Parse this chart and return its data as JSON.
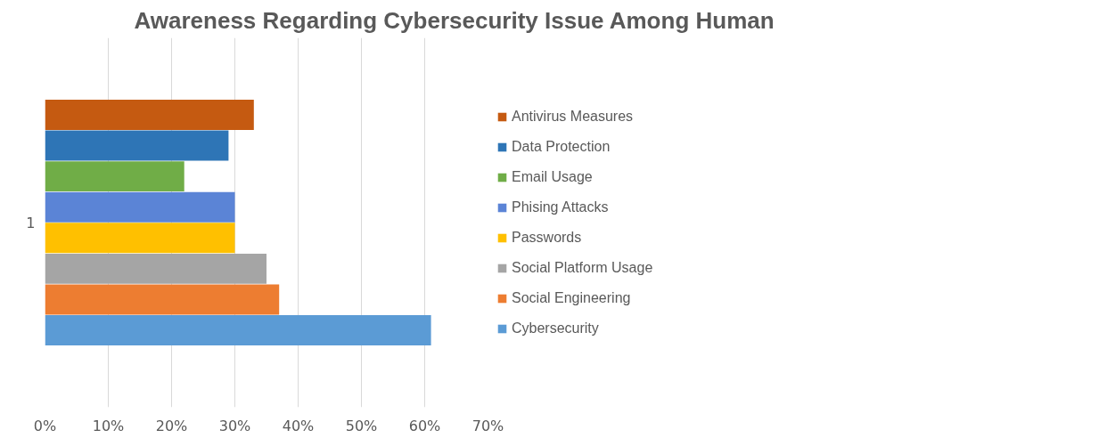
{
  "chart_data": {
    "type": "bar",
    "orientation": "horizontal",
    "title": "Awareness Regarding Cybersecurity Issue Among Human",
    "categories": [
      "1"
    ],
    "series": [
      {
        "name": "Cybersecurity",
        "color": "#5b9bd5",
        "values": [
          61
        ]
      },
      {
        "name": "Social Engineering",
        "color": "#ed7d31",
        "values": [
          37
        ]
      },
      {
        "name": "Social Platform Usage",
        "color": "#a5a5a5",
        "values": [
          35
        ]
      },
      {
        "name": "Passwords",
        "color": "#ffc000",
        "values": [
          30
        ]
      },
      {
        "name": "Phising Attacks",
        "color": "#5b84d6",
        "values": [
          30
        ]
      },
      {
        "name": "Email Usage",
        "color": "#70ad47",
        "values": [
          22
        ]
      },
      {
        "name": "Data Protection",
        "color": "#2e75b6",
        "values": [
          29
        ]
      },
      {
        "name": "Antivirus Measures",
        "color": "#c55a11",
        "values": [
          33
        ]
      }
    ],
    "xlim": [
      0,
      70
    ],
    "xticks": [
      {
        "value": 0,
        "label": "0%"
      },
      {
        "value": 10,
        "label": "10%"
      },
      {
        "value": 20,
        "label": "20%"
      },
      {
        "value": 30,
        "label": "30%"
      },
      {
        "value": 40,
        "label": "40%"
      },
      {
        "value": 50,
        "label": "50%"
      },
      {
        "value": 60,
        "label": "60%"
      },
      {
        "value": 70,
        "label": "70%"
      }
    ],
    "grid": "x",
    "legend": "right"
  }
}
